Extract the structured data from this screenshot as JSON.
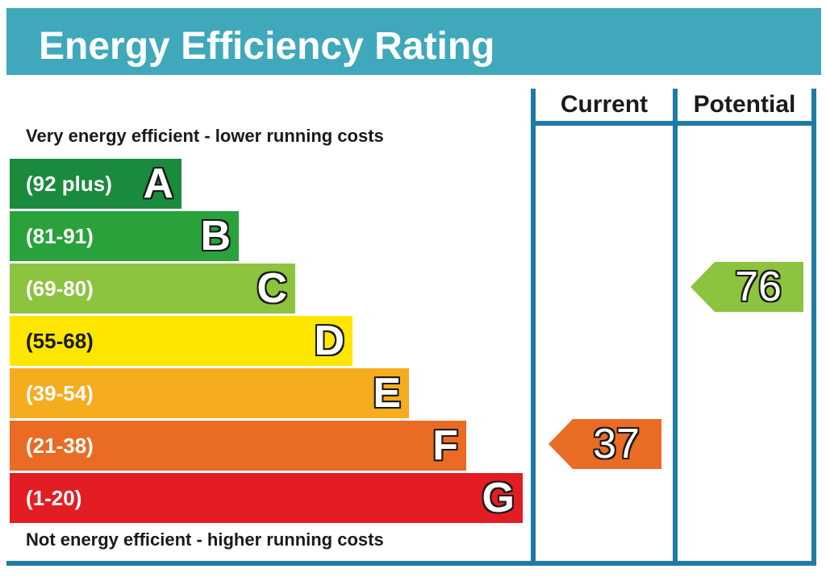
{
  "chart_data": {
    "type": "bar",
    "title": "Energy Efficiency Rating",
    "top_caption": "Very energy efficient - lower running costs",
    "bottom_caption": "Not energy efficient - higher running costs",
    "categories": [
      "A",
      "B",
      "C",
      "D",
      "E",
      "F",
      "G"
    ],
    "bands": [
      {
        "letter": "A",
        "range": "(92 plus)",
        "color": "#1a8a3c"
      },
      {
        "letter": "B",
        "range": "(81-91)",
        "color": "#2aa23b"
      },
      {
        "letter": "C",
        "range": "(69-80)",
        "color": "#8cc33f"
      },
      {
        "letter": "D",
        "range": "(55-68)",
        "color": "#ffe600"
      },
      {
        "letter": "E",
        "range": "(39-54)",
        "color": "#f6ac1f"
      },
      {
        "letter": "F",
        "range": "(21-38)",
        "color": "#ea6b24"
      },
      {
        "letter": "G",
        "range": "(1-20)",
        "color": "#e31d23"
      }
    ],
    "columns": [
      "Current",
      "Potential"
    ],
    "current": {
      "value": 37,
      "band": "F",
      "color": "#ea6b24"
    },
    "potential": {
      "value": 76,
      "band": "C",
      "color": "#8cc33f"
    }
  }
}
